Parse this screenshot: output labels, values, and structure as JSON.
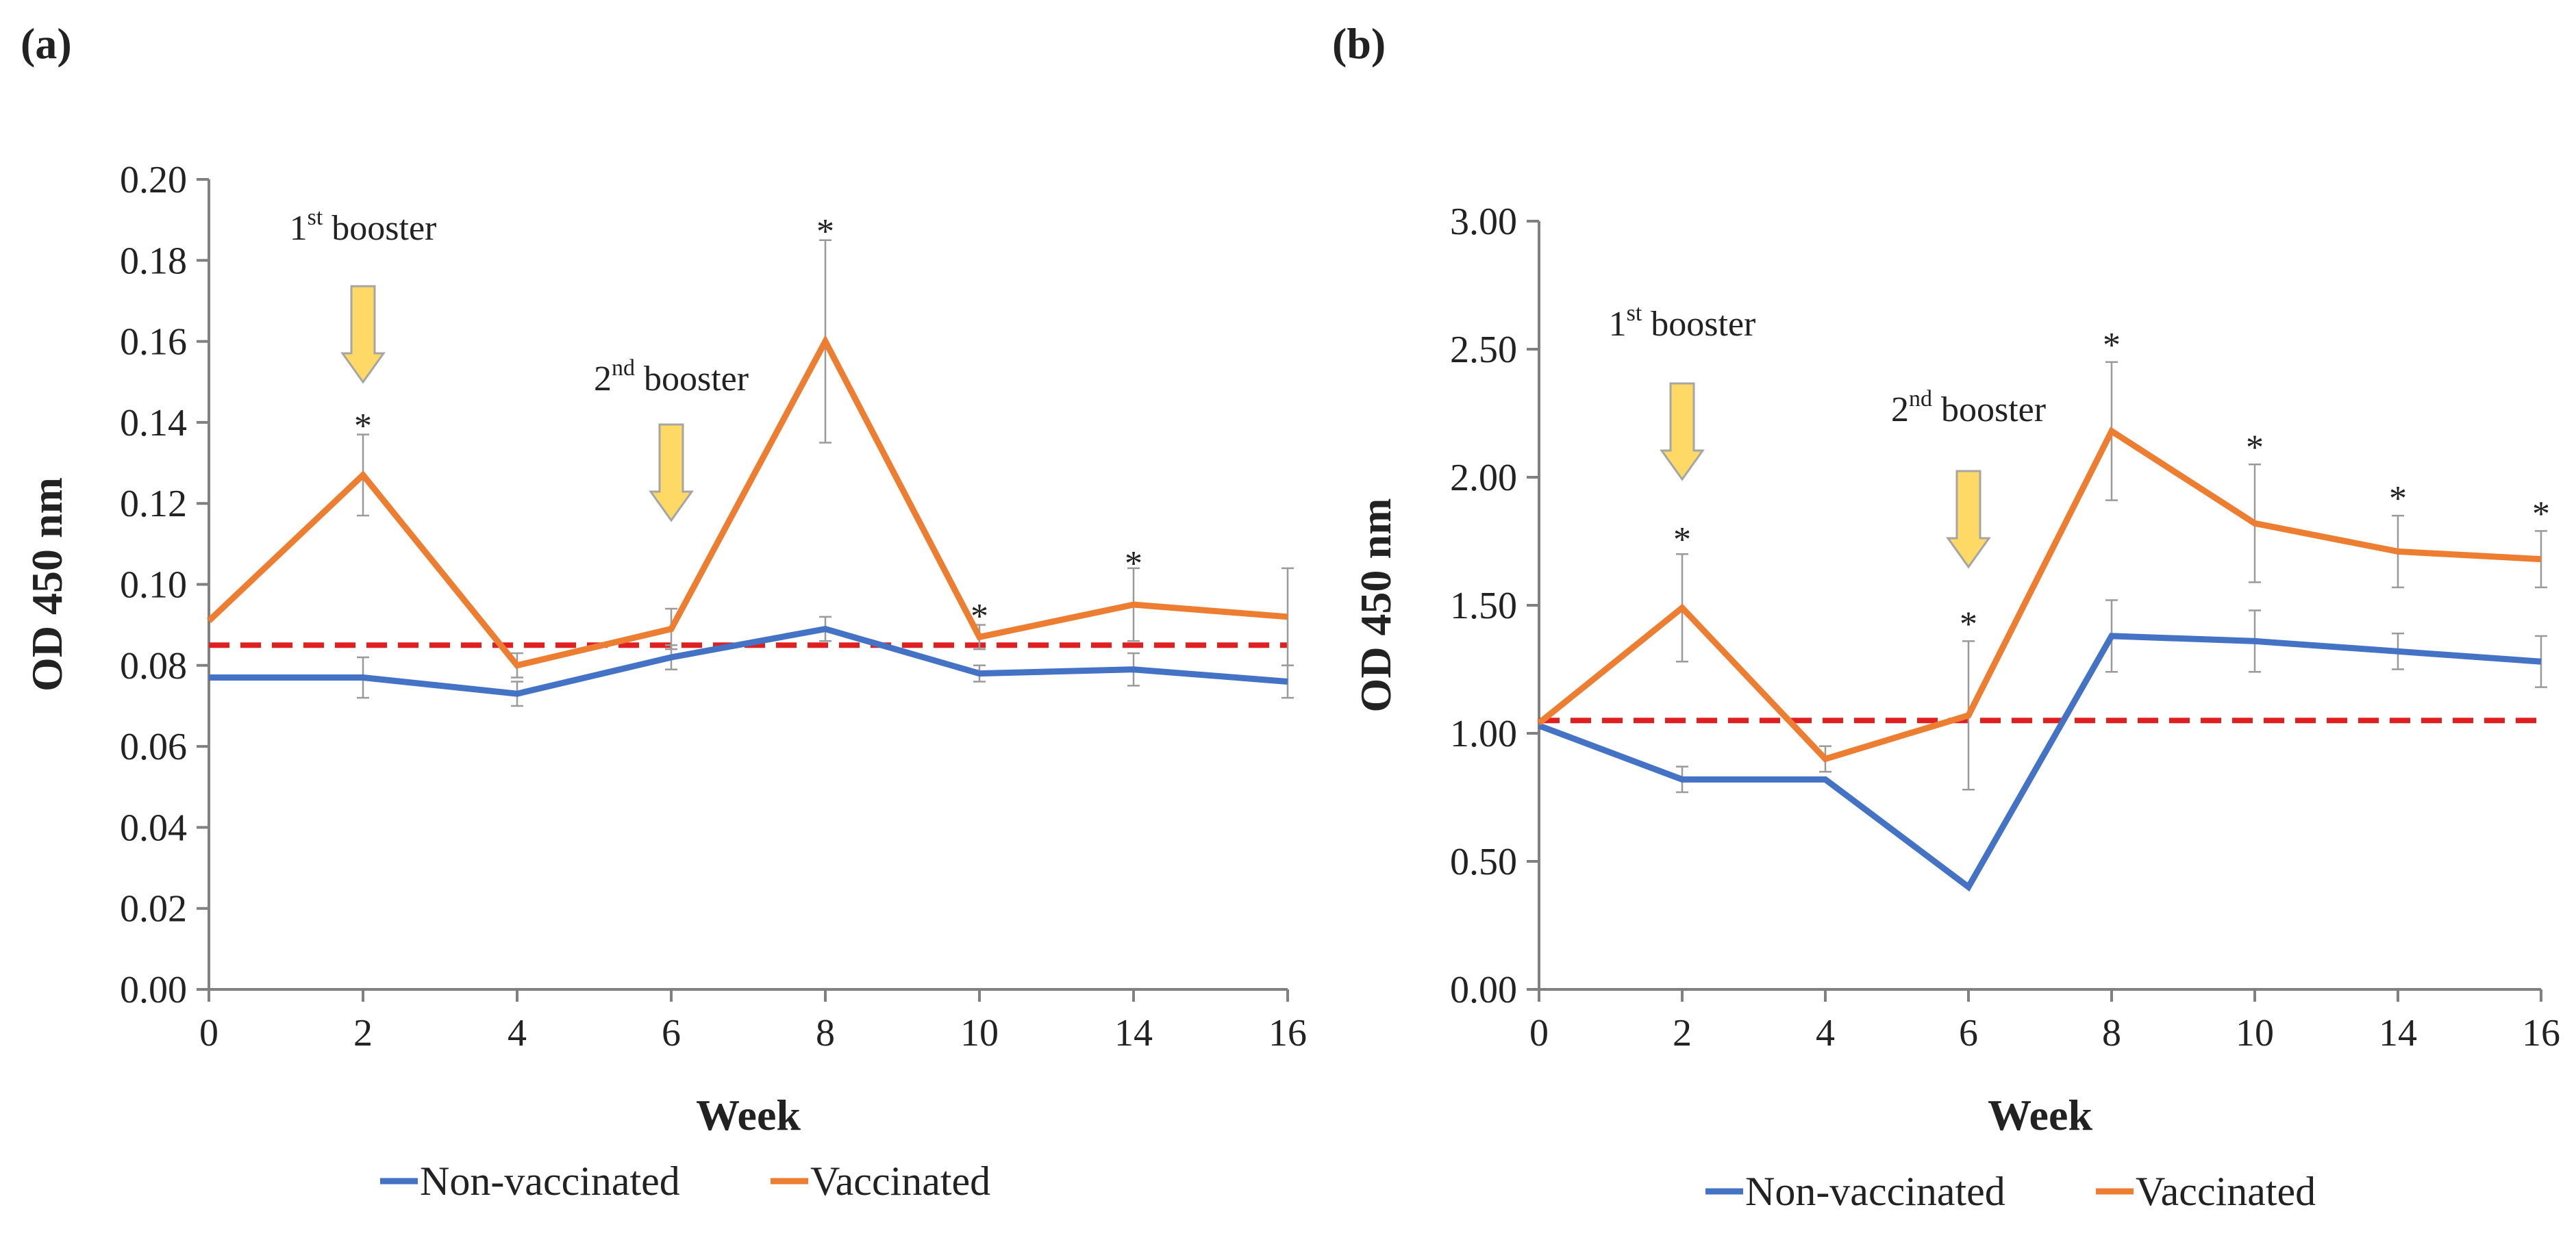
{
  "chart_data": [
    {
      "type": "line",
      "panel_label": "(a)",
      "title": "",
      "xlabel": "Week",
      "ylabel": "OD 450 nm",
      "categories": [
        "0",
        "2",
        "4",
        "6",
        "8",
        "10",
        "14",
        "16"
      ],
      "ylim": [
        0,
        0.2
      ],
      "y_ticks": [
        "0.00",
        "0.02",
        "0.04",
        "0.06",
        "0.08",
        "0.10",
        "0.12",
        "0.14",
        "0.16",
        "0.18",
        "0.20"
      ],
      "y_tick_values": [
        0,
        0.02,
        0.04,
        0.06,
        0.08,
        0.1,
        0.12,
        0.14,
        0.16,
        0.18,
        0.2
      ],
      "grid": false,
      "series": [
        {
          "name": "Non-vaccinated",
          "color": "#4472C4",
          "values": [
            0.077,
            0.077,
            0.073,
            0.082,
            0.089,
            0.078,
            0.079,
            0.076
          ],
          "error": [
            0,
            0.005,
            0.003,
            0.003,
            0.003,
            0.002,
            0.004,
            0.004
          ]
        },
        {
          "name": "Vaccinated",
          "color": "#ED7D31",
          "values": [
            0.091,
            0.127,
            0.08,
            0.089,
            0.16,
            0.087,
            0.095,
            0.092
          ],
          "error": [
            0,
            0.01,
            0.003,
            0.005,
            0.025,
            0.003,
            0.009,
            0.012
          ]
        }
      ],
      "cutoff": {
        "value": 0.085,
        "color": "#E02020"
      },
      "significance_marks": [
        {
          "index": 1,
          "label": "*",
          "value": 0.14
        },
        {
          "index": 4,
          "label": "*",
          "value": 0.188
        },
        {
          "index": 5,
          "label": "*",
          "value": 0.093
        },
        {
          "index": 6,
          "label": "*",
          "value": 0.106
        }
      ],
      "annotations": [
        {
          "base": "1",
          "sup": "st",
          "text": " booster",
          "index": 1
        },
        {
          "base": "2",
          "sup": "nd",
          "text": " booster",
          "index": 3
        }
      ],
      "legend": [
        "Non-vaccinated",
        "Vaccinated"
      ],
      "legend_position": "bottom"
    },
    {
      "type": "line",
      "panel_label": "(b)",
      "title": "",
      "xlabel": "Week",
      "ylabel": "OD 450 nm",
      "categories": [
        "0",
        "2",
        "4",
        "6",
        "8",
        "10",
        "14",
        "16"
      ],
      "ylim": [
        0,
        3
      ],
      "y_ticks": [
        "0.00",
        "0.50",
        "1.00",
        "1.50",
        "2.00",
        "2.50",
        "3.00"
      ],
      "y_tick_values": [
        0,
        0.5,
        1.0,
        1.5,
        2.0,
        2.5,
        3.0
      ],
      "grid": false,
      "series": [
        {
          "name": "Non-vaccinated",
          "color": "#4472C4",
          "values": [
            1.03,
            0.82,
            0.82,
            0.4,
            1.38,
            1.36,
            1.32,
            1.28
          ],
          "error": [
            0,
            0.05,
            0,
            0,
            0.14,
            0.12,
            0.07,
            0.1
          ]
        },
        {
          "name": "Vaccinated",
          "color": "#ED7D31",
          "values": [
            1.04,
            1.49,
            0.9,
            1.07,
            2.18,
            1.82,
            1.71,
            1.68
          ],
          "error": [
            0,
            0.21,
            0.05,
            0.29,
            0.27,
            0.23,
            0.14,
            0.11
          ]
        }
      ],
      "cutoff": {
        "value": 1.05,
        "color": "#E02020"
      },
      "significance_marks": [
        {
          "index": 1,
          "label": "*",
          "value": 1.77
        },
        {
          "index": 3,
          "label": "*",
          "value": 1.44
        },
        {
          "index": 4,
          "label": "*",
          "value": 2.53
        },
        {
          "index": 5,
          "label": "*",
          "value": 2.13
        },
        {
          "index": 6,
          "label": "*",
          "value": 1.93
        },
        {
          "index": 7,
          "label": "*",
          "value": 1.87
        }
      ],
      "annotations": [
        {
          "base": "1",
          "sup": "st",
          "text": " booster",
          "index": 1
        },
        {
          "base": "2",
          "sup": "nd",
          "text": " booster",
          "index": 3
        }
      ],
      "legend": [
        "Non-vaccinated",
        "Vaccinated"
      ],
      "legend_position": "bottom"
    }
  ]
}
